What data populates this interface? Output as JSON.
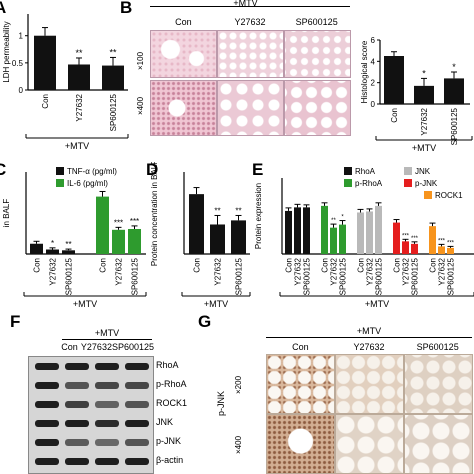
{
  "panel_labels": [
    "A",
    "B",
    "C",
    "D",
    "E",
    "F",
    "G"
  ],
  "mtv": "+MTV",
  "chart_data": [
    {
      "type": "bar",
      "panel": "A",
      "ylabel": "LDH permeability",
      "categories": [
        "Con",
        "Y27632",
        "SP600125"
      ],
      "values": [
        1.0,
        0.47,
        0.45
      ],
      "errors": [
        0.15,
        0.12,
        0.15
      ],
      "annotations": [
        "",
        "**",
        "**"
      ],
      "ylim": [
        0,
        1.4
      ],
      "yticks": [
        0.0,
        0.5,
        1.0
      ],
      "group_label": "+MTV"
    },
    {
      "type": "bar",
      "panel": "B",
      "ylabel": "Histological score",
      "categories": [
        "Con",
        "Y27632",
        "SP600125"
      ],
      "values": [
        4.5,
        1.7,
        2.4
      ],
      "errors": [
        0.4,
        0.7,
        0.6
      ],
      "annotations": [
        "",
        "*",
        "*"
      ],
      "ylim": [
        0,
        6
      ],
      "yticks": [
        0,
        2,
        4,
        6
      ],
      "group_label": "+MTV"
    },
    {
      "type": "bar",
      "panel": "C",
      "ylabel": "in BALF",
      "legend": [
        "TNF-α (pg/ml)",
        "IL-6 (pg/ml)"
      ],
      "series": [
        {
          "name": "TNF-α (pg/ml)",
          "color": "#111111",
          "categories": [
            "Con",
            "Y27632",
            "SP600125"
          ],
          "values": [
            50,
            22,
            18
          ],
          "errors": [
            12,
            8,
            6
          ],
          "annotations": [
            "",
            "*",
            "**"
          ]
        },
        {
          "name": "IL-6 (pg/ml)",
          "color": "#2e9b2e",
          "categories": [
            "Con",
            "Y27632",
            "SP600125"
          ],
          "values": [
            280,
            118,
            122
          ],
          "errors": [
            25,
            12,
            15
          ],
          "annotations": [
            "",
            "***",
            "***"
          ]
        }
      ],
      "ylim": [
        0,
        400
      ],
      "group_label": "+MTV"
    },
    {
      "type": "bar",
      "panel": "D",
      "ylabel": "Protein concentration in BALF",
      "categories": [
        "Con",
        "Y27632",
        "SP600125"
      ],
      "values": [
        7.3,
        3.6,
        4.1
      ],
      "errors": [
        0.8,
        1.1,
        0.6
      ],
      "annotations": [
        "",
        "**",
        "**"
      ],
      "ylim": [
        0,
        10
      ],
      "group_label": "+MTV"
    },
    {
      "type": "bar",
      "panel": "E",
      "ylabel": "Protein expression",
      "legend": [
        "RhoA",
        "p-RhoA",
        "ROCK1",
        "JNK",
        "p-JNK"
      ],
      "series": [
        {
          "name": "RhoA",
          "color": "#111111",
          "categories": [
            "Con",
            "Y27632",
            "SP600125"
          ],
          "values": [
            0.85,
            0.92,
            0.92
          ],
          "errors": [
            0.06,
            0.06,
            0.05
          ],
          "annotations": [
            "",
            "",
            ""
          ]
        },
        {
          "name": "p-RhoA",
          "color": "#2e9b2e",
          "categories": [
            "Con",
            "Y27632",
            "SP600125"
          ],
          "values": [
            0.95,
            0.52,
            0.58
          ],
          "errors": [
            0.06,
            0.07,
            0.08
          ],
          "annotations": [
            "",
            "**",
            "*"
          ]
        },
        {
          "name": "JNK",
          "color": "#b9b9b9",
          "categories": [
            "Con",
            "Y27632",
            "SP600125"
          ],
          "values": [
            0.82,
            0.84,
            0.95
          ],
          "errors": [
            0.06,
            0.05,
            0.06
          ],
          "annotations": [
            "",
            "",
            ""
          ]
        },
        {
          "name": "p-JNK",
          "color": "#e51e1e",
          "categories": [
            "Con",
            "Y27632",
            "SP600125"
          ],
          "values": [
            0.62,
            0.25,
            0.2
          ],
          "errors": [
            0.06,
            0.04,
            0.04
          ],
          "annotations": [
            "",
            "***",
            "***"
          ]
        },
        {
          "name": "ROCK1",
          "color": "#f7941d",
          "categories": [
            "Con",
            "Y27632",
            "SP600125"
          ],
          "values": [
            0.55,
            0.15,
            0.12
          ],
          "errors": [
            0.06,
            0.04,
            0.03
          ],
          "annotations": [
            "",
            "***",
            "***"
          ]
        }
      ],
      "ylim": [
        0,
        1.5
      ],
      "group_label": "+MTV"
    }
  ],
  "panel_b": {
    "columns": [
      "Con",
      "Y27632",
      "SP600125"
    ],
    "rows": [
      "×100",
      "×400"
    ]
  },
  "panel_f": {
    "columns": [
      "Con",
      "Y27632",
      "SP600125"
    ],
    "bands": [
      "RhoA",
      "p-RhoA",
      "ROCK1",
      "JNK",
      "p-JNK",
      "β-actin"
    ]
  },
  "panel_g": {
    "columns": [
      "Con",
      "Y27632",
      "SP600125"
    ],
    "rows": [
      "×200",
      "×400"
    ],
    "side_label": "p-JNK"
  }
}
